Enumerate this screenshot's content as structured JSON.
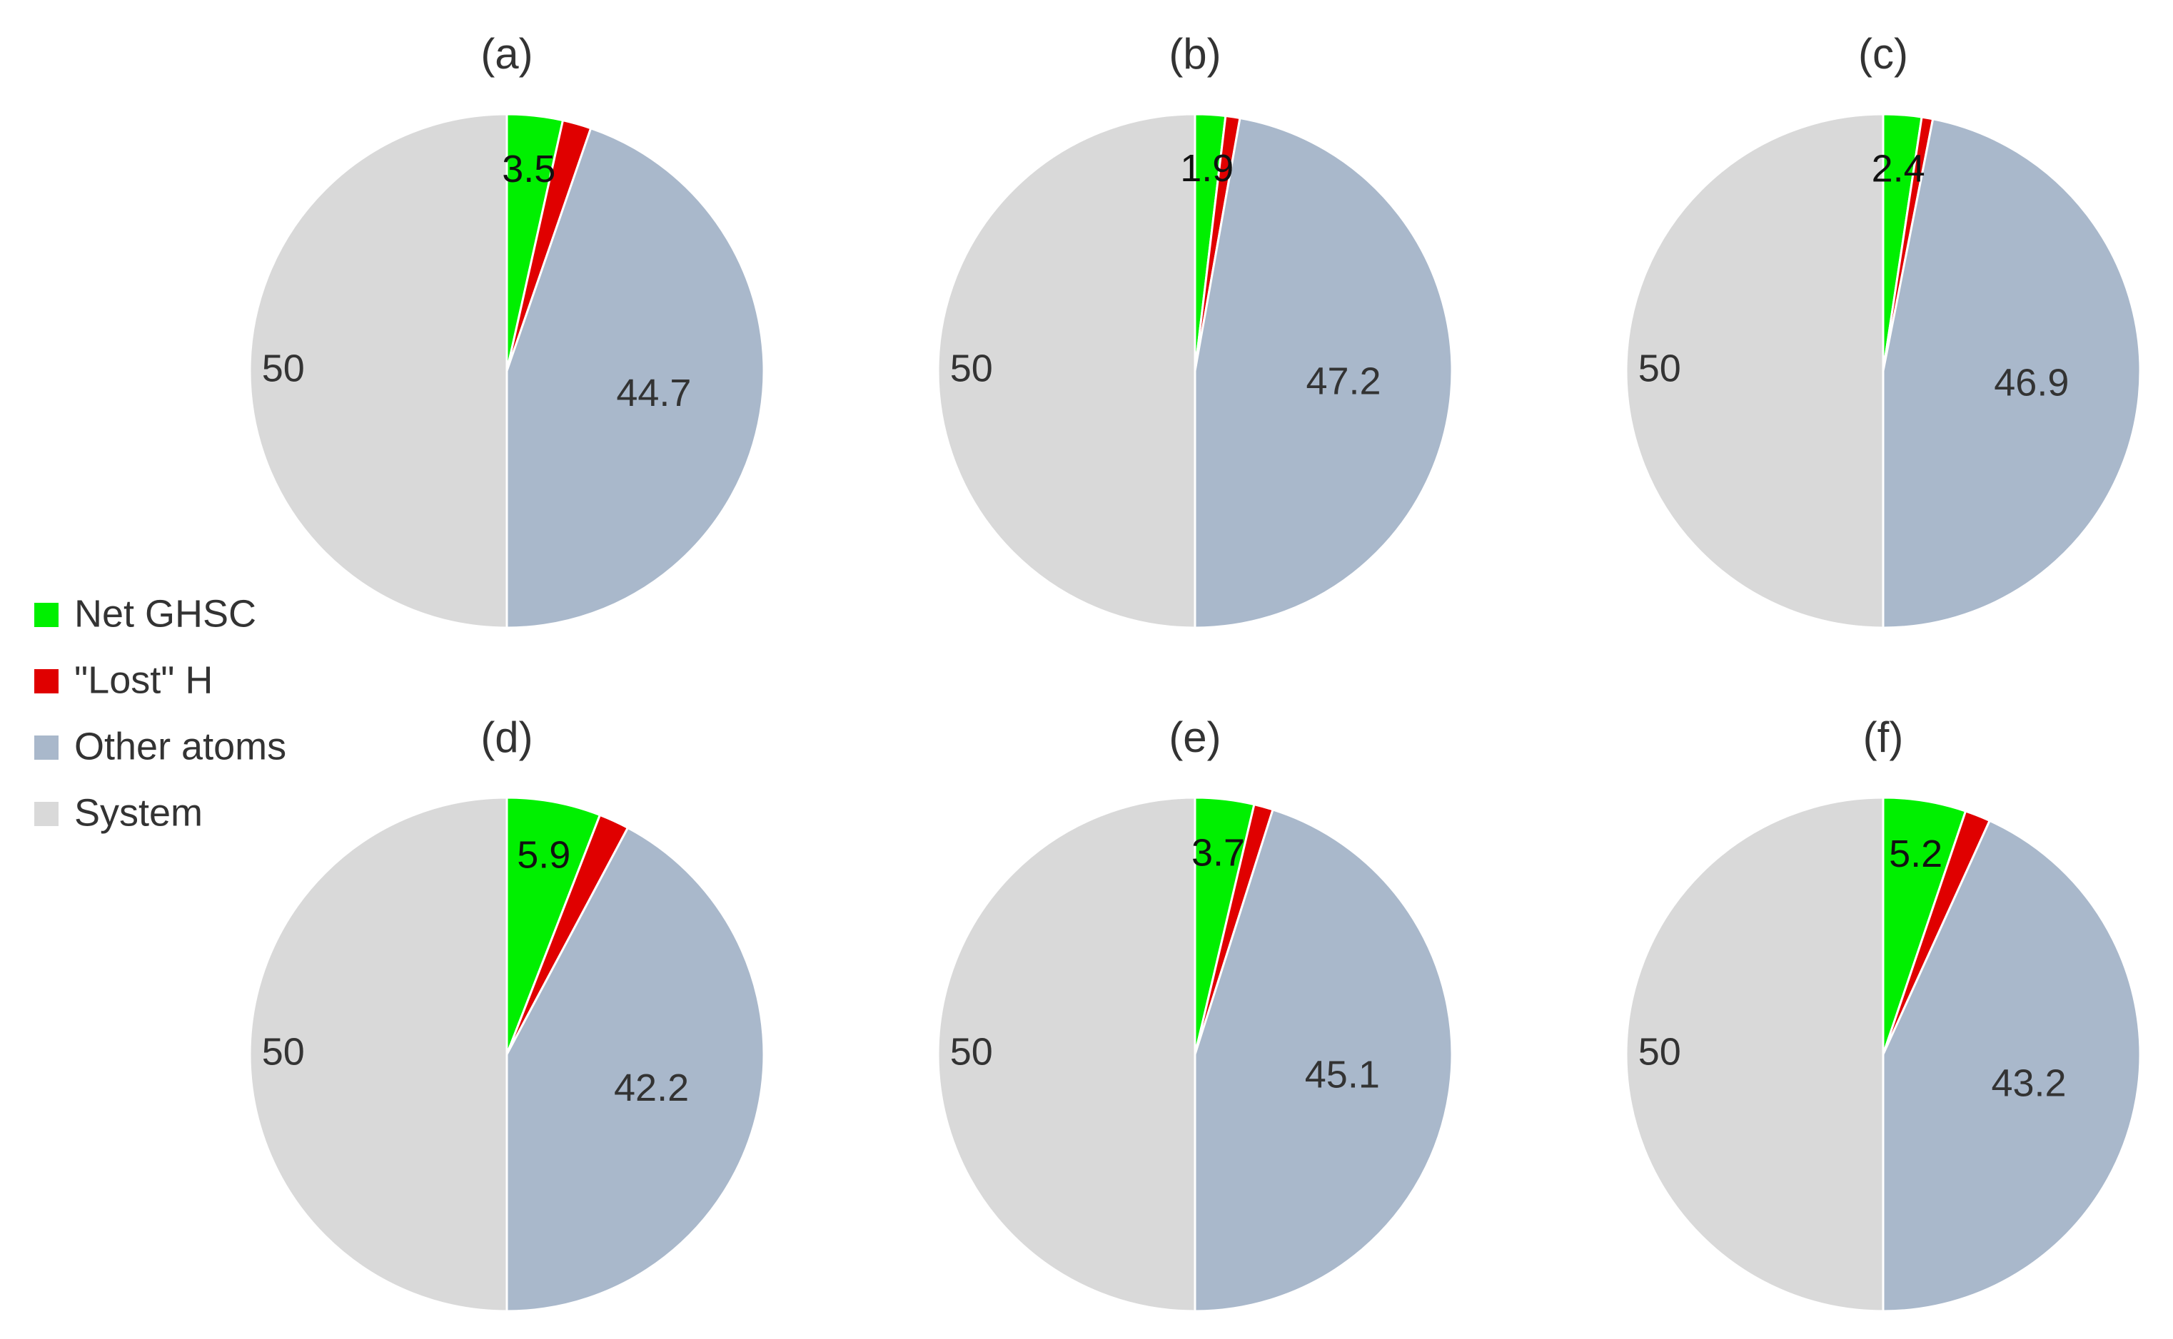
{
  "chart_data": {
    "type": "pie",
    "legend_placement": "left",
    "legend": [
      {
        "name": "Net GHSC",
        "color": "#00f000"
      },
      {
        "name": "\"Lost\" H",
        "color": "#e00000"
      },
      {
        "name": "Other atoms",
        "color": "#a9b8cb"
      },
      {
        "name": "System",
        "color": "#d9d9d9"
      }
    ],
    "pies": [
      {
        "label": "(a)",
        "slices": [
          {
            "name": "Net GHSC",
            "value": 3.5,
            "text": "3.5"
          },
          {
            "name": "\"Lost\" H",
            "value": 1.8,
            "text": ""
          },
          {
            "name": "Other atoms",
            "value": 44.7,
            "text": "44.7"
          },
          {
            "name": "System",
            "value": 50,
            "text": "50"
          }
        ]
      },
      {
        "label": "(b)",
        "slices": [
          {
            "name": "Net GHSC",
            "value": 1.9,
            "text": "1.9"
          },
          {
            "name": "\"Lost\" H",
            "value": 0.9,
            "text": ""
          },
          {
            "name": "Other atoms",
            "value": 47.2,
            "text": "47.2"
          },
          {
            "name": "System",
            "value": 50,
            "text": "50"
          }
        ]
      },
      {
        "label": "(c)",
        "slices": [
          {
            "name": "Net GHSC",
            "value": 2.4,
            "text": "2.4"
          },
          {
            "name": "\"Lost\" H",
            "value": 0.7,
            "text": ""
          },
          {
            "name": "Other atoms",
            "value": 46.9,
            "text": "46.9"
          },
          {
            "name": "System",
            "value": 50,
            "text": "50"
          }
        ]
      },
      {
        "label": "(d)",
        "slices": [
          {
            "name": "Net GHSC",
            "value": 5.9,
            "text": "5.9"
          },
          {
            "name": "\"Lost\" H",
            "value": 1.9,
            "text": ""
          },
          {
            "name": "Other atoms",
            "value": 42.2,
            "text": "42.2"
          },
          {
            "name": "System",
            "value": 50,
            "text": "50"
          }
        ]
      },
      {
        "label": "(e)",
        "slices": [
          {
            "name": "Net GHSC",
            "value": 3.7,
            "text": "3.7"
          },
          {
            "name": "\"Lost\" H",
            "value": 1.2,
            "text": ""
          },
          {
            "name": "Other atoms",
            "value": 45.1,
            "text": "45.1"
          },
          {
            "name": "System",
            "value": 50,
            "text": "50"
          }
        ]
      },
      {
        "label": "(f)",
        "slices": [
          {
            "name": "Net GHSC",
            "value": 5.2,
            "text": "5.2"
          },
          {
            "name": "\"Lost\" H",
            "value": 1.6,
            "text": ""
          },
          {
            "name": "Other atoms",
            "value": 43.2,
            "text": "43.2"
          },
          {
            "name": "System",
            "value": 50,
            "text": "50"
          }
        ]
      }
    ]
  }
}
